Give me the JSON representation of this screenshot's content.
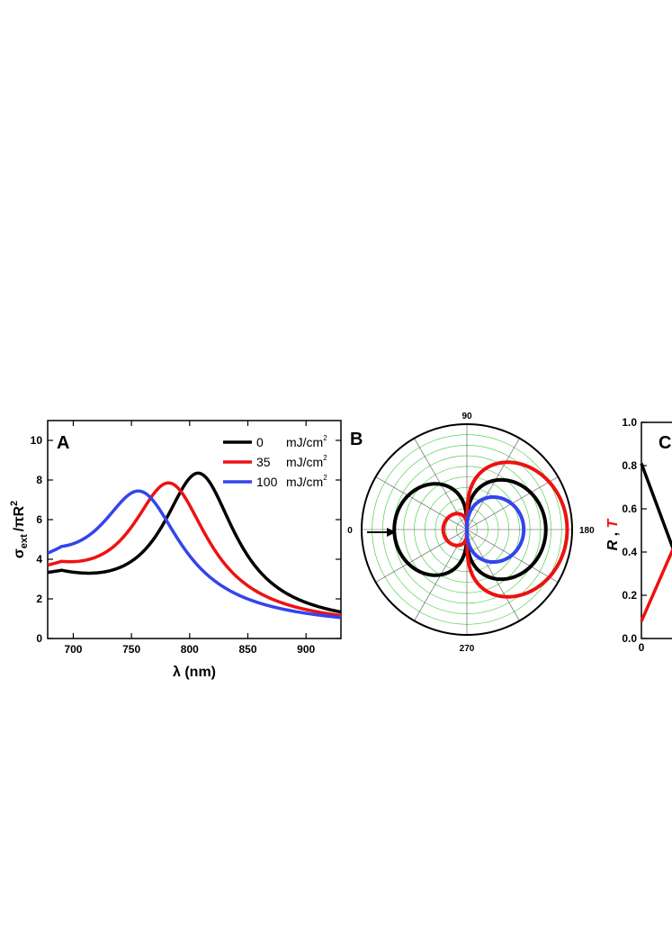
{
  "chart_data": [
    {
      "panel": "A",
      "type": "line",
      "xlabel": "λ (nm)",
      "ylabel": "σext /πR2",
      "ylabel_parts": {
        "sigma": "σ",
        "sub": "ext",
        "rest": "/πR",
        "sup": "2"
      },
      "xlim": [
        678,
        930
      ],
      "ylim": [
        0,
        11
      ],
      "xticks": [
        700,
        750,
        800,
        850,
        900
      ],
      "yticks": [
        0,
        2,
        4,
        6,
        8,
        10
      ],
      "legend_position": "top-right",
      "legend_unit": {
        "base": "mJ/cm",
        "sup": "2"
      },
      "series": [
        {
          "name": "0",
          "color": "#000000",
          "peak_x": 808,
          "peak_y": 9.35,
          "gamma": 38,
          "baseline": 3.2
        },
        {
          "name": "35",
          "color": "#ee1111",
          "peak_x": 783,
          "peak_y": 8.6,
          "gamma": 40,
          "baseline": 3.35
        },
        {
          "name": "100",
          "color": "#3344ee",
          "peak_x": 758,
          "peak_y": 7.8,
          "gamma": 42,
          "baseline": 3.6
        }
      ]
    },
    {
      "panel": "B",
      "type": "polar",
      "angle_labels": [
        "90",
        "0",
        "180",
        "270"
      ],
      "grid": true,
      "grid_color": "#33cc33",
      "incident_arrow": true,
      "series": [
        {
          "color": "#000000",
          "forward": 1.0,
          "backward": 0.92,
          "lobe_exponent": 2.1
        },
        {
          "color": "#ee1111",
          "forward": 1.27,
          "backward": 0.3,
          "lobe_exponent": 2.7
        },
        {
          "color": "#3344ee",
          "forward": 0.72,
          "backward": 0.0,
          "lobe_exponent": 1.5
        }
      ]
    },
    {
      "panel": "C",
      "type": "line",
      "ylabel": "R , T",
      "ylabel_colors": {
        "R": "#000000",
        "T": "#ee1111"
      },
      "ylim": [
        0,
        1.0
      ],
      "yticks": [
        "0.0",
        "0.2",
        "0.4",
        "0.6",
        "0.8",
        "1.0"
      ],
      "xticks": [
        "0"
      ],
      "series": [
        {
          "name": "R",
          "color": "#000000",
          "start_y": 0.81,
          "slope_per_px": -0.0112
        },
        {
          "name": "T",
          "color": "#ee1111",
          "start_y": 0.08,
          "slope_per_px": 0.0095
        }
      ]
    }
  ]
}
